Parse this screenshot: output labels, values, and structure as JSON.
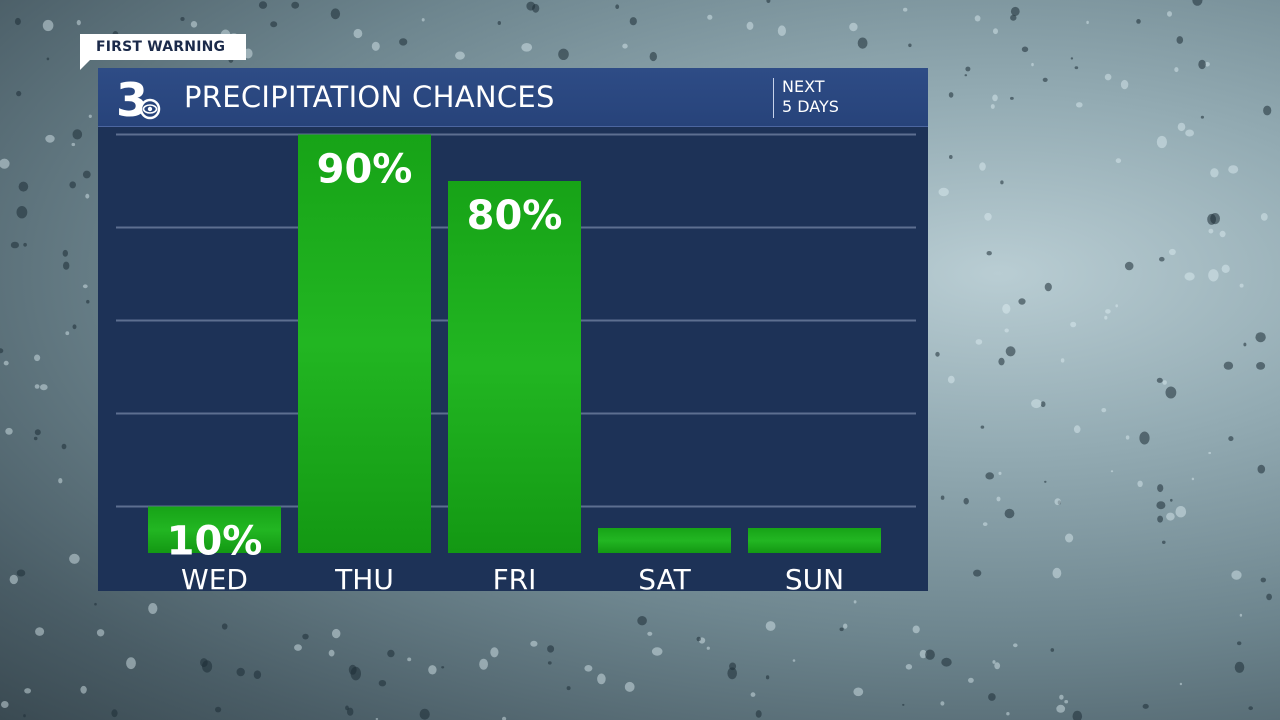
{
  "tag": {
    "label": "FIRST WARNING"
  },
  "header": {
    "logo_text": "3",
    "title": "PRECIPITATION CHANCES",
    "subtitle_line1": "NEXT",
    "subtitle_line2": "5 DAYS"
  },
  "chart_data": {
    "type": "bar",
    "title": "PRECIPITATION CHANCES",
    "subtitle": "NEXT 5 DAYS",
    "categories": [
      "WED",
      "THU",
      "FRI",
      "SAT",
      "SUN"
    ],
    "values": [
      10,
      90,
      80,
      0,
      0
    ],
    "data_labels": [
      "10%",
      "90%",
      "80%",
      "",
      ""
    ],
    "ylim": [
      0,
      100
    ],
    "grid": true,
    "bar_color": "#1aa51a",
    "bar_color_light": "#22b922",
    "label_color": "#ffffff"
  }
}
